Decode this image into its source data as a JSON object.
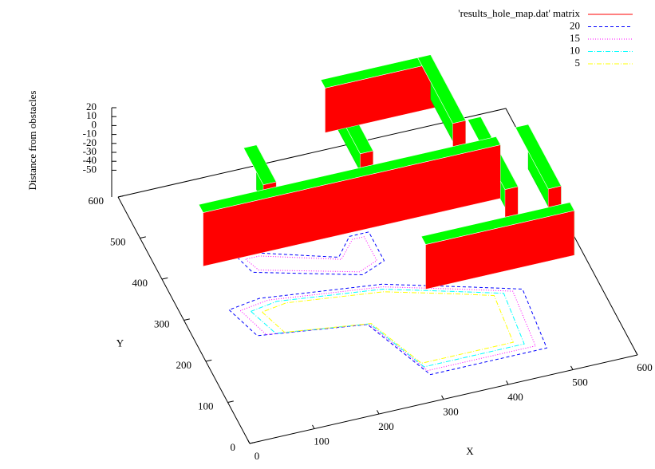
{
  "chart_data": {
    "type": "surface3d",
    "xlabel": "X",
    "ylabel": "Y",
    "zlabel": "Distance from obstacles",
    "xlim": [
      0,
      600
    ],
    "xticks": [
      0,
      100,
      200,
      300,
      400,
      500,
      600
    ],
    "ylim": [
      0,
      600
    ],
    "yticks": [
      0,
      100,
      200,
      300,
      400,
      500,
      600
    ],
    "zlim": [
      -80,
      20
    ],
    "zticks": [
      20,
      10,
      0,
      -10,
      -20,
      -30,
      -40,
      -50
    ],
    "legend": "top-right",
    "series": [
      {
        "name": "'results_hole_map.dat' matrix",
        "color": "#ff0000",
        "top_color": "#00ff00",
        "style": "solid",
        "blocks": [
          [
            300,
            380,
            320,
            560,
            -30,
            20
          ],
          [
            300,
            540,
            470,
            560,
            -30,
            20
          ],
          [
            450,
            400,
            470,
            560,
            -30,
            20
          ],
          [
            40,
            330,
            500,
            350,
            -40,
            20
          ],
          [
            330,
            170,
            560,
            190,
            -40,
            10
          ],
          [
            150,
            380,
            170,
            470,
            -40,
            10
          ],
          [
            480,
            250,
            500,
            420,
            -40,
            10
          ],
          [
            540,
            230,
            560,
            380,
            -40,
            10
          ]
        ]
      },
      {
        "name": "20",
        "color": "#0000ff",
        "style": "dashed",
        "paths": [
          [
            [
              70,
              300
            ],
            [
              90,
              230
            ],
            [
              250,
              200
            ],
            [
              300,
              60
            ],
            [
              480,
              60
            ],
            [
              490,
              200
            ],
            [
              420,
              230
            ],
            [
              300,
              280
            ],
            [
              120,
              310
            ],
            [
              70,
              300
            ]
          ],
          [
            [
              120,
              410
            ],
            [
              130,
              370
            ],
            [
              280,
              310
            ],
            [
              320,
              330
            ],
            [
              320,
              400
            ],
            [
              290,
              400
            ],
            [
              260,
              360
            ],
            [
              150,
              410
            ],
            [
              120,
              410
            ]
          ]
        ]
      },
      {
        "name": "15",
        "color": "#ff00ff",
        "style": "dotted",
        "paths": [
          [
            [
              85,
              293
            ],
            [
              103,
              228
            ],
            [
              252,
              200
            ],
            [
              299,
              70
            ],
            [
              466,
              70
            ],
            [
              475,
              200
            ],
            [
              410,
              228
            ],
            [
              299,
              274
            ],
            [
              131,
              302
            ],
            [
              85,
              293
            ]
          ],
          [
            [
              130,
              402
            ],
            [
              140,
              372
            ],
            [
              278,
              318
            ],
            [
              310,
              334
            ],
            [
              310,
              392
            ],
            [
              292,
              392
            ],
            [
              262,
              354
            ],
            [
              152,
              402
            ],
            [
              130,
              402
            ]
          ]
        ]
      },
      {
        "name": "10",
        "color": "#00ffff",
        "style": "dashdot",
        "paths": [
          [
            [
              99,
              286
            ],
            [
              117,
              226
            ],
            [
              254,
              200
            ],
            [
              297,
              80
            ],
            [
              452,
              80
            ],
            [
              461,
              200
            ],
            [
              400,
              226
            ],
            [
              297,
              269
            ],
            [
              142,
              295
            ],
            [
              99,
              286
            ]
          ]
        ]
      },
      {
        "name": "5",
        "color": "#ffff00",
        "style": "dashdot",
        "paths": [
          [
            [
              114,
              279
            ],
            [
              130,
              224
            ],
            [
              256,
              200
            ],
            [
              296,
              89
            ],
            [
              438,
              89
            ],
            [
              446,
              200
            ],
            [
              391,
              224
            ],
            [
              296,
              263
            ],
            [
              154,
              287
            ],
            [
              114,
              279
            ]
          ]
        ]
      }
    ]
  }
}
